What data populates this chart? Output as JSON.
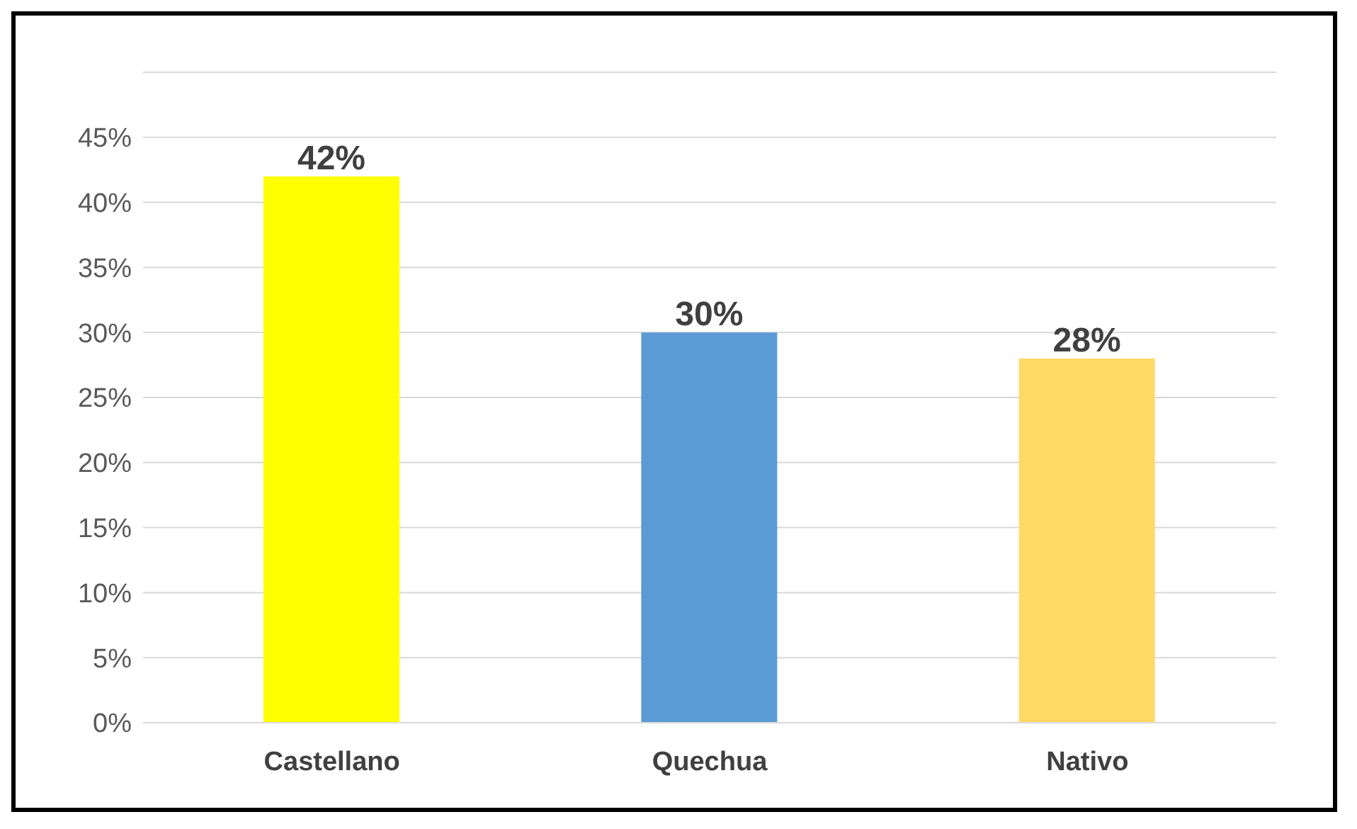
{
  "chart_data": {
    "type": "bar",
    "categories": [
      "Castellano",
      "Quechua",
      "Nativo"
    ],
    "values": [
      42,
      30,
      28
    ],
    "colors": [
      "#ffff00",
      "#5b9bd5",
      "#ffd966"
    ],
    "value_labels": [
      "42%",
      "30%",
      "28%"
    ],
    "ylim": [
      0,
      50
    ],
    "yticks": [
      {
        "value": 0,
        "label": "0%"
      },
      {
        "value": 5,
        "label": "5%"
      },
      {
        "value": 10,
        "label": "10%"
      },
      {
        "value": 15,
        "label": "15%"
      },
      {
        "value": 20,
        "label": "20%"
      },
      {
        "value": 25,
        "label": "25%"
      },
      {
        "value": 30,
        "label": "30%"
      },
      {
        "value": 35,
        "label": "35%"
      },
      {
        "value": 40,
        "label": "40%"
      },
      {
        "value": 45,
        "label": "45%"
      },
      {
        "value": 50,
        "label": null
      }
    ],
    "grid": "y",
    "legend": false
  }
}
